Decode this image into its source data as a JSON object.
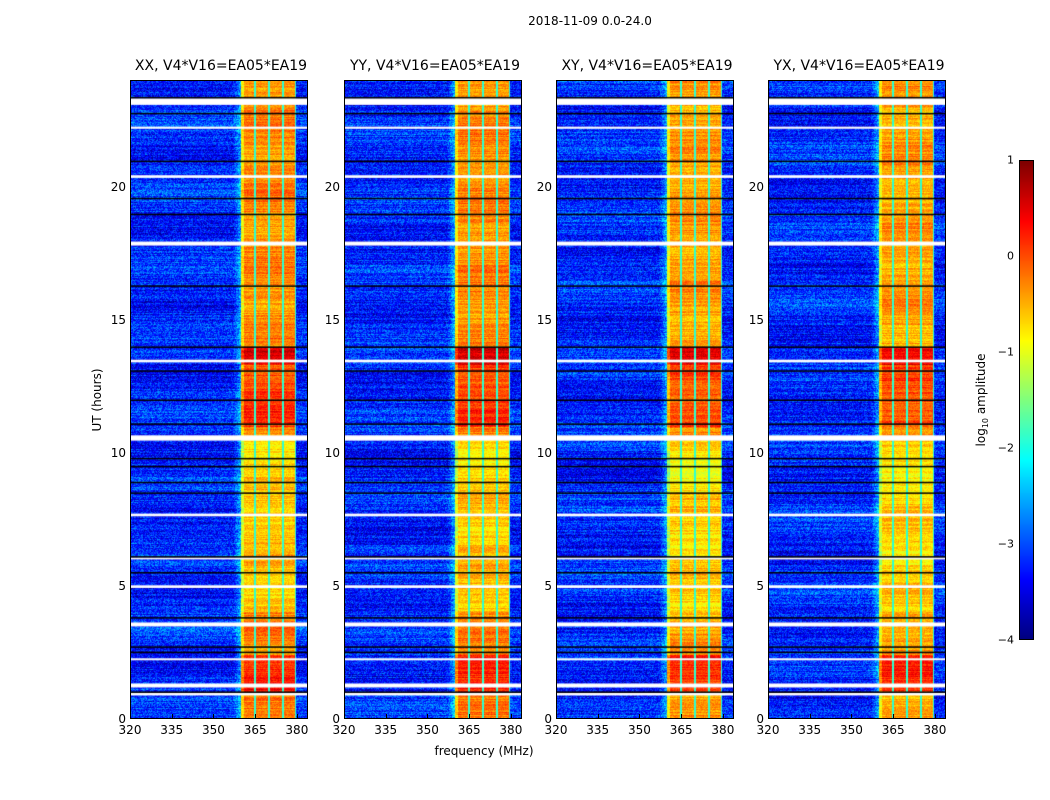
{
  "figure": {
    "suptitle": "2018-11-09 0.0-24.0",
    "ylabel": "UT (hours)",
    "xlabel": "frequency (MHz)"
  },
  "chart_data": {
    "type": "heatmap",
    "title": "2018-11-09 0.0-24.0",
    "xlabel": "frequency (MHz)",
    "ylabel": "UT (hours)",
    "xlim": [
      320,
      384
    ],
    "ylim": [
      0,
      24
    ],
    "xticks": [
      320,
      335,
      350,
      365,
      380
    ],
    "yticks": [
      0,
      5,
      10,
      15,
      20
    ],
    "panels": [
      {
        "title": "XX, V4*V16=EA05*EA19",
        "polarization": "XX"
      },
      {
        "title": "YY, V4*V16=EA05*EA19",
        "polarization": "YY"
      },
      {
        "title": "XY, V4*V16=EA05*EA19",
        "polarization": "XY"
      },
      {
        "title": "YX, V4*V16=EA05*EA19",
        "polarization": "YX"
      }
    ],
    "colorbar": {
      "label": "log10 amplitude",
      "label_main": "log",
      "label_sub": "10",
      "label_rest": " amplitude",
      "range": [
        -4,
        1
      ],
      "ticks": [
        1,
        0,
        -1,
        -2,
        -3,
        -4
      ],
      "tick_labels": [
        "1",
        "0",
        "−1",
        "−2",
        "−3",
        "−4"
      ],
      "colormap": "jet"
    },
    "bright_band_MHz": [
      360,
      380
    ],
    "subband_edges_MHz": [
      360,
      365,
      370,
      375,
      380
    ],
    "background_log_amplitude": -3.2,
    "band_log_amplitude": -0.3,
    "flagged_gaps_UT": [
      [
        23.1,
        23.35
      ],
      [
        17.8,
        17.95
      ],
      [
        10.45,
        10.65
      ],
      [
        3.45,
        3.6
      ],
      [
        1.15,
        1.3
      ],
      [
        0.85,
        0.95
      ],
      [
        20.35,
        20.45
      ],
      [
        22.2,
        22.28
      ],
      [
        13.4,
        13.5
      ],
      [
        7.6,
        7.7
      ],
      [
        6.0,
        6.05
      ],
      [
        4.9,
        5.0
      ],
      [
        2.2,
        2.25
      ]
    ],
    "flag_lines_UT": [
      23.4,
      22.8,
      21.0,
      19.6,
      19.0,
      16.3,
      14.0,
      13.1,
      12.0,
      11.1,
      9.8,
      9.5,
      8.9,
      8.5,
      6.1,
      5.5,
      3.8,
      2.7,
      2.5,
      1.0
    ]
  }
}
